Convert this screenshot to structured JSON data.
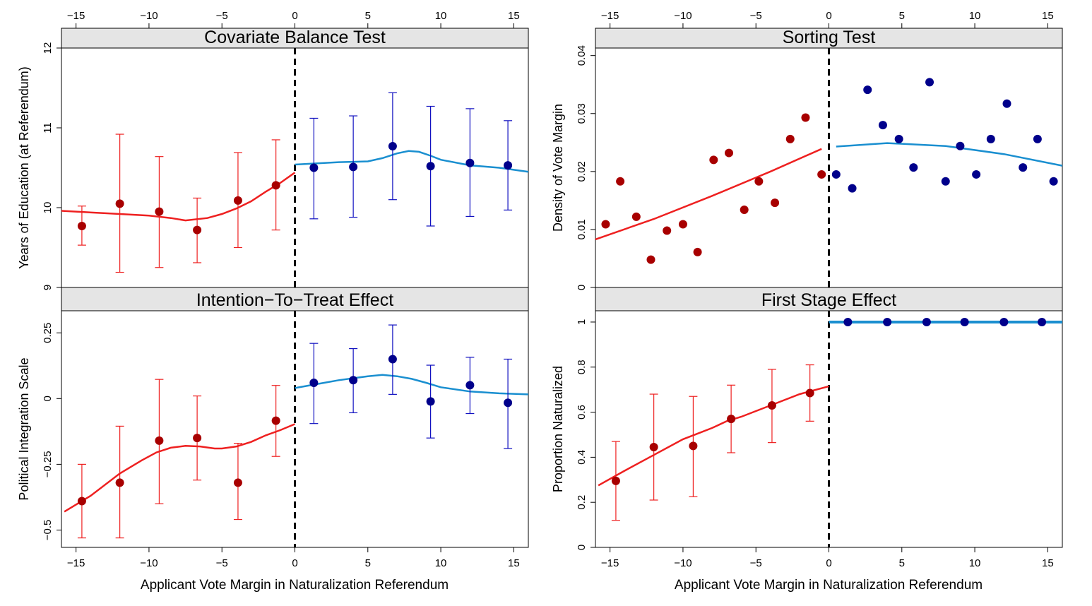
{
  "colors": {
    "left_points": "#a80000",
    "left_line": "#ee2020",
    "right_points": "#00008b",
    "right_line": "#1a8fd0",
    "strip": "#e5e5e5",
    "cutoff": "#000000"
  },
  "shared_xlabel": "Applicant Vote Margin in Naturalization Referendum",
  "chart_data": [
    {
      "type": "scatter",
      "title": "Covariate Balance Test",
      "ylabel": "Years of Education (at Referendum)",
      "xlim": [
        -16,
        16
      ],
      "ylim": [
        9,
        12
      ],
      "xticks": [
        -15,
        -10,
        -5,
        0,
        5,
        10,
        15
      ],
      "yticks": [
        9,
        10,
        11,
        12
      ],
      "cutoff": 0,
      "left_points": [
        {
          "x": -14.6,
          "y": 9.77,
          "lo": 9.53,
          "hi": 10.02
        },
        {
          "x": -12.0,
          "y": 10.05,
          "lo": 9.19,
          "hi": 10.92
        },
        {
          "x": -9.3,
          "y": 9.95,
          "lo": 9.25,
          "hi": 10.64
        },
        {
          "x": -6.7,
          "y": 9.72,
          "lo": 9.31,
          "hi": 10.12
        },
        {
          "x": -3.9,
          "y": 10.09,
          "lo": 9.5,
          "hi": 10.69
        },
        {
          "x": -1.3,
          "y": 10.28,
          "lo": 9.72,
          "hi": 10.85
        }
      ],
      "right_points": [
        {
          "x": 1.3,
          "y": 10.5,
          "lo": 9.86,
          "hi": 11.12
        },
        {
          "x": 4.0,
          "y": 10.51,
          "lo": 9.88,
          "hi": 11.15
        },
        {
          "x": 6.7,
          "y": 10.77,
          "lo": 10.1,
          "hi": 11.44
        },
        {
          "x": 9.3,
          "y": 10.52,
          "lo": 9.77,
          "hi": 11.27
        },
        {
          "x": 12.0,
          "y": 10.56,
          "lo": 9.89,
          "hi": 11.24
        },
        {
          "x": 14.6,
          "y": 10.53,
          "lo": 9.97,
          "hi": 11.09
        }
      ],
      "left_line": [
        [
          -16,
          9.96
        ],
        [
          -13,
          9.93
        ],
        [
          -10,
          9.9
        ],
        [
          -8.5,
          9.87
        ],
        [
          -7.5,
          9.84
        ],
        [
          -6,
          9.87
        ],
        [
          -5,
          9.92
        ],
        [
          -4,
          9.99
        ],
        [
          -3,
          10.08
        ],
        [
          -2,
          10.2
        ],
        [
          -1,
          10.31
        ],
        [
          0,
          10.44
        ]
      ],
      "right_line": [
        [
          0,
          10.54
        ],
        [
          3,
          10.57
        ],
        [
          5,
          10.58
        ],
        [
          6,
          10.62
        ],
        [
          7,
          10.68
        ],
        [
          7.8,
          10.71
        ],
        [
          8.5,
          10.7
        ],
        [
          9.3,
          10.65
        ],
        [
          10,
          10.6
        ],
        [
          12,
          10.53
        ],
        [
          14,
          10.5
        ],
        [
          16,
          10.45
        ]
      ]
    },
    {
      "type": "scatter",
      "title": "Sorting Test",
      "ylabel": "Density of Vote Margin",
      "xlim": [
        -16,
        16
      ],
      "ylim": [
        0,
        0.0413
      ],
      "xticks": [
        -15,
        -10,
        -5,
        0,
        5,
        10,
        15
      ],
      "yticks": [
        0,
        0.01,
        0.02,
        0.03,
        0.04
      ],
      "cutoff": 0,
      "left_points": [
        {
          "x": -15.3,
          "y": 0.0109
        },
        {
          "x": -14.3,
          "y": 0.0183
        },
        {
          "x": -13.2,
          "y": 0.0122
        },
        {
          "x": -12.2,
          "y": 0.0048
        },
        {
          "x": -11.1,
          "y": 0.0098
        },
        {
          "x": -10.0,
          "y": 0.0109
        },
        {
          "x": -9.0,
          "y": 0.0061
        },
        {
          "x": -7.9,
          "y": 0.022
        },
        {
          "x": -6.85,
          "y": 0.0232
        },
        {
          "x": -5.8,
          "y": 0.0134
        },
        {
          "x": -4.8,
          "y": 0.0183
        },
        {
          "x": -3.7,
          "y": 0.0146
        },
        {
          "x": -2.65,
          "y": 0.0256
        },
        {
          "x": -1.6,
          "y": 0.0293
        },
        {
          "x": -0.5,
          "y": 0.0195
        }
      ],
      "right_points": [
        {
          "x": 0.5,
          "y": 0.0195
        },
        {
          "x": 1.6,
          "y": 0.0171
        },
        {
          "x": 2.65,
          "y": 0.0341
        },
        {
          "x": 3.7,
          "y": 0.028
        },
        {
          "x": 4.8,
          "y": 0.0256
        },
        {
          "x": 5.8,
          "y": 0.0207
        },
        {
          "x": 6.9,
          "y": 0.0354
        },
        {
          "x": 8.0,
          "y": 0.0183
        },
        {
          "x": 9.0,
          "y": 0.0244
        },
        {
          "x": 10.1,
          "y": 0.0195
        },
        {
          "x": 11.1,
          "y": 0.0256
        },
        {
          "x": 12.2,
          "y": 0.0317
        },
        {
          "x": 13.3,
          "y": 0.0207
        },
        {
          "x": 14.3,
          "y": 0.0256
        },
        {
          "x": 15.4,
          "y": 0.0183
        }
      ],
      "left_line": [
        [
          -16,
          0.0083
        ],
        [
          -12,
          0.0118
        ],
        [
          -8,
          0.0158
        ],
        [
          -4,
          0.02
        ],
        [
          -0.5,
          0.0239
        ]
      ],
      "right_line": [
        [
          0.5,
          0.0243
        ],
        [
          4,
          0.0249
        ],
        [
          8,
          0.0244
        ],
        [
          12,
          0.023
        ],
        [
          16,
          0.021
        ]
      ]
    },
    {
      "type": "scatter",
      "title": "Intention−To−Treat Effect",
      "ylabel": "Political Integration Scale",
      "xlabel": "Applicant Vote Margin in Naturalization Referendum",
      "xlim": [
        -16,
        16
      ],
      "ylim": [
        -0.566,
        0.334
      ],
      "xticks": [
        -15,
        -10,
        -5,
        0,
        5,
        10,
        15
      ],
      "yticks": [
        -0.5,
        -0.25,
        0,
        0.25
      ],
      "ytick_labels": [
        "−0.5",
        "−0.25",
        "0",
        "0.25"
      ],
      "cutoff": 0,
      "left_points": [
        {
          "x": -14.6,
          "y": -0.39,
          "lo": -0.53,
          "hi": -0.25
        },
        {
          "x": -12.0,
          "y": -0.32,
          "lo": -0.53,
          "hi": -0.105
        },
        {
          "x": -9.3,
          "y": -0.16,
          "lo": -0.4,
          "hi": 0.073
        },
        {
          "x": -6.7,
          "y": -0.15,
          "lo": -0.31,
          "hi": 0.01
        },
        {
          "x": -3.9,
          "y": -0.32,
          "lo": -0.46,
          "hi": -0.17
        },
        {
          "x": -1.3,
          "y": -0.084,
          "lo": -0.22,
          "hi": 0.05
        }
      ],
      "right_points": [
        {
          "x": 1.3,
          "y": 0.06,
          "lo": -0.095,
          "hi": 0.21
        },
        {
          "x": 4.0,
          "y": 0.07,
          "lo": -0.054,
          "hi": 0.19
        },
        {
          "x": 6.7,
          "y": 0.15,
          "lo": 0.016,
          "hi": 0.28
        },
        {
          "x": 9.3,
          "y": -0.011,
          "lo": -0.15,
          "hi": 0.127
        },
        {
          "x": 12.0,
          "y": 0.051,
          "lo": -0.057,
          "hi": 0.157
        },
        {
          "x": 14.6,
          "y": -0.016,
          "lo": -0.19,
          "hi": 0.15
        }
      ],
      "left_line": [
        [
          -15.8,
          -0.43
        ],
        [
          -14,
          -0.37
        ],
        [
          -12,
          -0.285
        ],
        [
          -10.5,
          -0.235
        ],
        [
          -9.5,
          -0.205
        ],
        [
          -8.5,
          -0.187
        ],
        [
          -7.5,
          -0.18
        ],
        [
          -6.5,
          -0.182
        ],
        [
          -5.5,
          -0.19
        ],
        [
          -5,
          -0.19
        ],
        [
          -4,
          -0.182
        ],
        [
          -3,
          -0.165
        ],
        [
          -2,
          -0.14
        ],
        [
          -1,
          -0.12
        ],
        [
          0,
          -0.097
        ]
      ],
      "right_line": [
        [
          0,
          0.04
        ],
        [
          2,
          0.06
        ],
        [
          3,
          0.07
        ],
        [
          5,
          0.085
        ],
        [
          6,
          0.09
        ],
        [
          7,
          0.085
        ],
        [
          8,
          0.075
        ],
        [
          9,
          0.06
        ],
        [
          10,
          0.043
        ],
        [
          12,
          0.027
        ],
        [
          14,
          0.02
        ],
        [
          16,
          0.016
        ]
      ]
    },
    {
      "type": "scatter",
      "title": "First Stage Effect",
      "ylabel": "Proportion Naturalized",
      "xlabel": "Applicant Vote Margin in Naturalization Referendum",
      "xlim": [
        -16,
        16
      ],
      "ylim": [
        0,
        1.05
      ],
      "xticks": [
        -15,
        -10,
        -5,
        0,
        5,
        10,
        15
      ],
      "yticks": [
        0,
        0.2,
        0.4,
        0.6,
        0.8,
        1
      ],
      "cutoff": 0,
      "left_points": [
        {
          "x": -14.6,
          "y": 0.295,
          "lo": 0.12,
          "hi": 0.47
        },
        {
          "x": -12.0,
          "y": 0.445,
          "lo": 0.21,
          "hi": 0.68
        },
        {
          "x": -9.3,
          "y": 0.45,
          "lo": 0.225,
          "hi": 0.67
        },
        {
          "x": -6.7,
          "y": 0.57,
          "lo": 0.42,
          "hi": 0.72
        },
        {
          "x": -3.9,
          "y": 0.63,
          "lo": 0.465,
          "hi": 0.79
        },
        {
          "x": -1.3,
          "y": 0.685,
          "lo": 0.56,
          "hi": 0.81
        }
      ],
      "right_points": [
        {
          "x": 1.3,
          "y": 1
        },
        {
          "x": 4.0,
          "y": 1
        },
        {
          "x": 6.7,
          "y": 1
        },
        {
          "x": 9.3,
          "y": 1
        },
        {
          "x": 12.0,
          "y": 1
        },
        {
          "x": 14.6,
          "y": 1
        }
      ],
      "left_line": [
        [
          -15.8,
          0.275
        ],
        [
          -14,
          0.34
        ],
        [
          -12,
          0.41
        ],
        [
          -10,
          0.48
        ],
        [
          -9,
          0.505
        ],
        [
          -8,
          0.53
        ],
        [
          -7,
          0.56
        ],
        [
          -6,
          0.58
        ],
        [
          -5,
          0.605
        ],
        [
          -4,
          0.63
        ],
        [
          -2,
          0.68
        ],
        [
          0,
          0.715
        ]
      ],
      "right_line": [
        [
          0,
          1
        ],
        [
          16,
          1
        ]
      ]
    }
  ]
}
